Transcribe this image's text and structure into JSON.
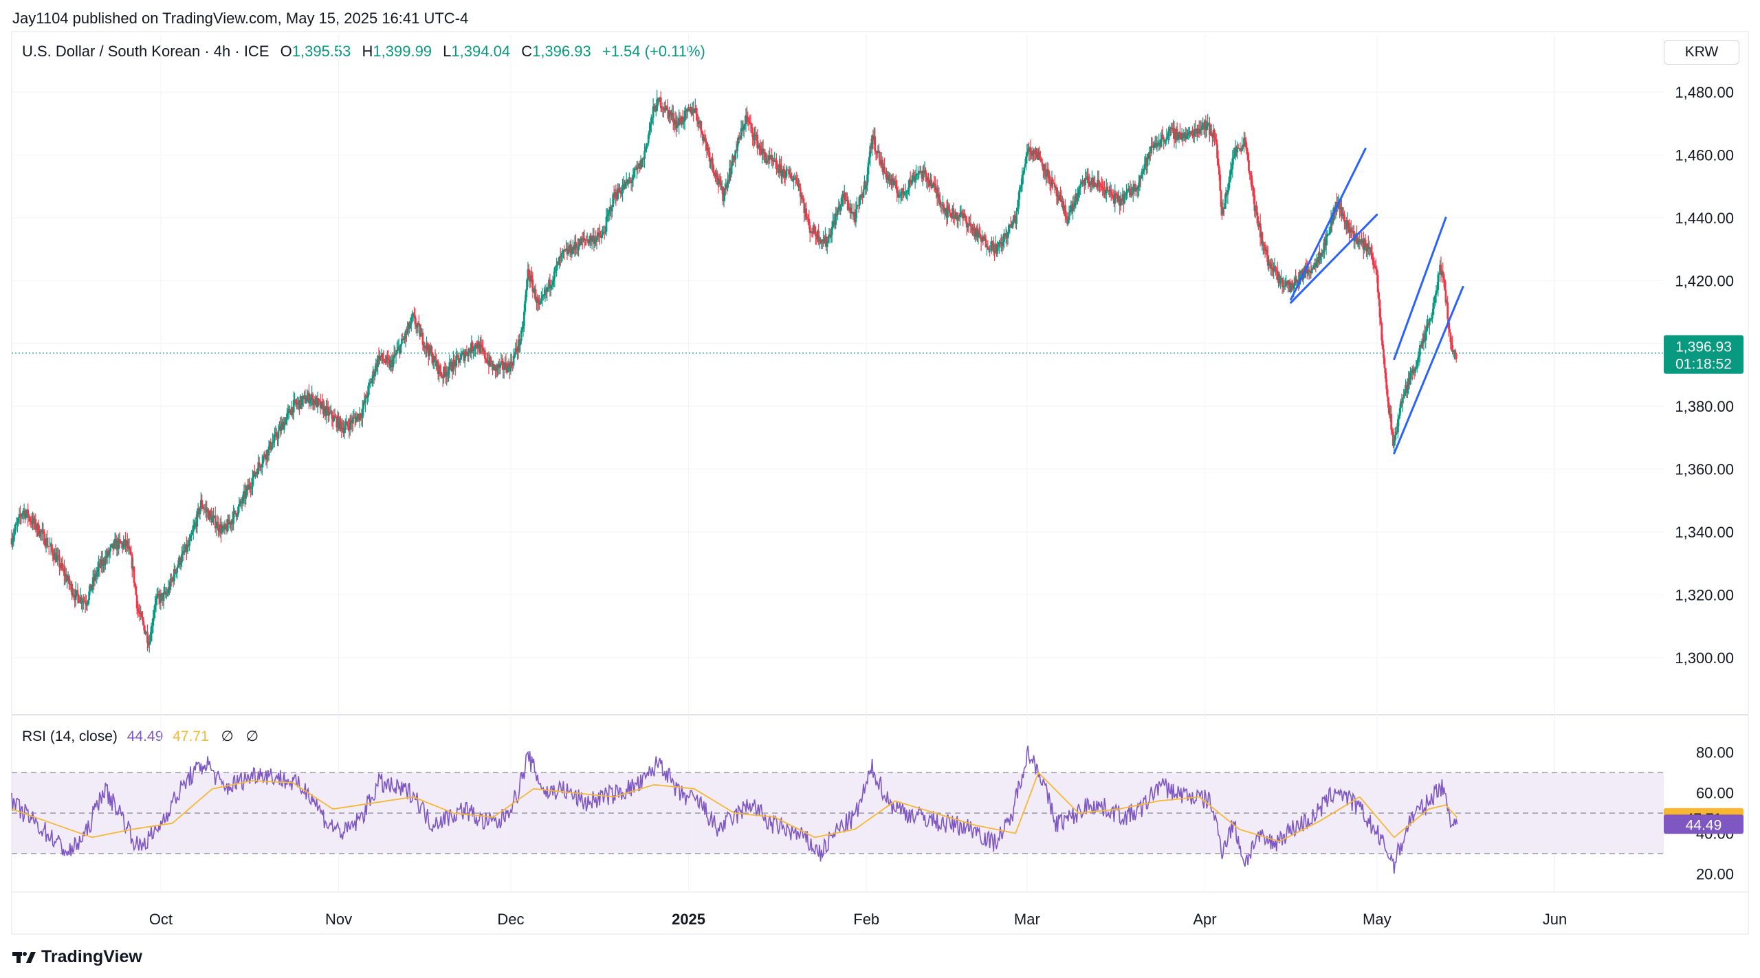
{
  "header": {
    "published": "Jay1104 published on TradingView.com, May 15, 2025 16:41 UTC-4"
  },
  "symbol": {
    "name": "U.S. Dollar / South Korean · 4h · ICE",
    "o_label": "O",
    "o_value": "1,395.53",
    "h_label": "H",
    "h_value": "1,399.99",
    "l_label": "L",
    "l_value": "1,394.04",
    "c_label": "C",
    "c_value": "1,396.93",
    "change": "+1.54 (+0.11%)"
  },
  "currency_button": "KRW",
  "price_marker": {
    "price": "1,396.93",
    "countdown": "01:18:52"
  },
  "rsi": {
    "title": "RSI (14, close)",
    "rsi_value": "44.49",
    "ma_value": "47.71",
    "sym1": "∅",
    "sym2": "∅"
  },
  "brand": {
    "name": "TradingView"
  },
  "colors": {
    "up": "#089981",
    "down": "#f23645",
    "trendline": "#2962ff",
    "rsi": "#7e57c2",
    "rsi_ma": "#f7b733",
    "rsi_band": "#ede7f6"
  },
  "chart_data": [
    {
      "type": "candlestick",
      "title": "U.S. Dollar / South Korean · 4h · ICE",
      "y_ticks": [
        "1,300.00",
        "1,320.00",
        "1,340.00",
        "1,360.00",
        "1,380.00",
        "1,400.00",
        "1,420.00",
        "1,440.00",
        "1,460.00",
        "1,480.00"
      ],
      "ylim": [
        1284,
        1494
      ],
      "x_ticks": [
        "Oct",
        "Nov",
        "Dec",
        "2025",
        "Feb",
        "Mar",
        "Apr",
        "May",
        "Jun"
      ],
      "x_tick_dates": [
        "2024-10-01",
        "2024-11-01",
        "2024-12-01",
        "2025-01-01",
        "2025-02-01",
        "2025-03-01",
        "2025-04-01",
        "2025-05-01",
        "2025-06-01"
      ],
      "xlim": [
        "2024-09-05",
        "2025-06-20"
      ],
      "last_price": 1396.93,
      "close_path": [
        [
          "2024-09-05",
          1338
        ],
        [
          "2024-09-07",
          1347
        ],
        [
          "2024-09-10",
          1340
        ],
        [
          "2024-09-13",
          1331
        ],
        [
          "2024-09-16",
          1320
        ],
        [
          "2024-09-18",
          1318
        ],
        [
          "2024-09-20",
          1328
        ],
        [
          "2024-09-23",
          1336
        ],
        [
          "2024-09-25",
          1336
        ],
        [
          "2024-09-26",
          1330
        ],
        [
          "2024-09-27",
          1315
        ],
        [
          "2024-09-29",
          1305
        ],
        [
          "2024-09-30",
          1318
        ],
        [
          "2024-10-02",
          1320
        ],
        [
          "2024-10-04",
          1330
        ],
        [
          "2024-10-06",
          1336
        ],
        [
          "2024-10-08",
          1349
        ],
        [
          "2024-10-10",
          1344
        ],
        [
          "2024-10-12",
          1340
        ],
        [
          "2024-10-15",
          1349
        ],
        [
          "2024-10-18",
          1361
        ],
        [
          "2024-10-21",
          1370
        ],
        [
          "2024-10-24",
          1380
        ],
        [
          "2024-10-27",
          1383
        ],
        [
          "2024-10-30",
          1378
        ],
        [
          "2024-11-02",
          1373
        ],
        [
          "2024-11-05",
          1378
        ],
        [
          "2024-11-08",
          1396
        ],
        [
          "2024-11-10",
          1393
        ],
        [
          "2024-11-12",
          1400
        ],
        [
          "2024-11-14",
          1408
        ],
        [
          "2024-11-16",
          1400
        ],
        [
          "2024-11-19",
          1390
        ],
        [
          "2024-11-22",
          1395
        ],
        [
          "2024-11-25",
          1400
        ],
        [
          "2024-11-28",
          1392
        ],
        [
          "2024-12-01",
          1393
        ],
        [
          "2024-12-03",
          1403
        ],
        [
          "2024-12-04",
          1423
        ],
        [
          "2024-12-06",
          1411
        ],
        [
          "2024-12-08",
          1420
        ],
        [
          "2024-12-10",
          1428
        ],
        [
          "2024-12-14",
          1433
        ],
        [
          "2024-12-17",
          1434
        ],
        [
          "2024-12-19",
          1447
        ],
        [
          "2024-12-22",
          1452
        ],
        [
          "2024-12-24",
          1458
        ],
        [
          "2024-12-26",
          1475
        ],
        [
          "2024-12-27",
          1477
        ],
        [
          "2024-12-30",
          1470
        ],
        [
          "2025-01-02",
          1475
        ],
        [
          "2025-01-05",
          1458
        ],
        [
          "2025-01-07",
          1447
        ],
        [
          "2025-01-09",
          1460
        ],
        [
          "2025-01-11",
          1472
        ],
        [
          "2025-01-14",
          1460
        ],
        [
          "2025-01-17",
          1455
        ],
        [
          "2025-01-20",
          1452
        ],
        [
          "2025-01-22",
          1437
        ],
        [
          "2025-01-25",
          1432
        ],
        [
          "2025-01-28",
          1447
        ],
        [
          "2025-01-30",
          1440
        ],
        [
          "2025-02-01",
          1452
        ],
        [
          "2025-02-02",
          1466
        ],
        [
          "2025-02-04",
          1455
        ],
        [
          "2025-02-07",
          1447
        ],
        [
          "2025-02-10",
          1455
        ],
        [
          "2025-02-12",
          1452
        ],
        [
          "2025-02-15",
          1442
        ],
        [
          "2025-02-18",
          1440
        ],
        [
          "2025-02-21",
          1433
        ],
        [
          "2025-02-24",
          1430
        ],
        [
          "2025-02-27",
          1440
        ],
        [
          "2025-03-01",
          1462
        ],
        [
          "2025-03-03",
          1460
        ],
        [
          "2025-03-06",
          1448
        ],
        [
          "2025-03-08",
          1440
        ],
        [
          "2025-03-11",
          1452
        ],
        [
          "2025-03-14",
          1450
        ],
        [
          "2025-03-17",
          1445
        ],
        [
          "2025-03-20",
          1450
        ],
        [
          "2025-03-23",
          1463
        ],
        [
          "2025-03-26",
          1467
        ],
        [
          "2025-03-29",
          1466
        ],
        [
          "2025-04-01",
          1470
        ],
        [
          "2025-04-03",
          1465
        ],
        [
          "2025-04-04",
          1440
        ],
        [
          "2025-04-06",
          1460
        ],
        [
          "2025-04-08",
          1465
        ],
        [
          "2025-04-10",
          1440
        ],
        [
          "2025-04-12",
          1426
        ],
        [
          "2025-04-14",
          1420
        ],
        [
          "2025-04-16",
          1418
        ],
        [
          "2025-04-18",
          1422
        ],
        [
          "2025-04-20",
          1425
        ],
        [
          "2025-04-22",
          1432
        ],
        [
          "2025-04-24",
          1445
        ],
        [
          "2025-04-26",
          1437
        ],
        [
          "2025-04-28",
          1432
        ],
        [
          "2025-04-30",
          1430
        ],
        [
          "2025-05-01",
          1420
        ],
        [
          "2025-05-02",
          1398
        ],
        [
          "2025-05-03",
          1380
        ],
        [
          "2025-05-04",
          1367
        ],
        [
          "2025-05-05",
          1380
        ],
        [
          "2025-05-07",
          1390
        ],
        [
          "2025-05-09",
          1400
        ],
        [
          "2025-05-11",
          1412
        ],
        [
          "2025-05-12",
          1425
        ],
        [
          "2025-05-13",
          1415
        ],
        [
          "2025-05-14",
          1398
        ],
        [
          "2025-05-15",
          1396.93
        ]
      ],
      "trendlines": [
        {
          "from": [
            "2025-04-16",
            1414
          ],
          "to": [
            "2025-04-29",
            1462
          ]
        },
        {
          "from": [
            "2025-04-16",
            1413
          ],
          "to": [
            "2025-05-01",
            1441
          ]
        },
        {
          "from": [
            "2025-05-04",
            1395
          ],
          "to": [
            "2025-05-13",
            1440
          ]
        },
        {
          "from": [
            "2025-05-04",
            1365
          ],
          "to": [
            "2025-05-16",
            1418
          ]
        }
      ]
    },
    {
      "type": "line",
      "title": "RSI (14, close)",
      "y_ticks": [
        "20.00",
        "40.00",
        "60.00",
        "80.00"
      ],
      "ylim": [
        13,
        85
      ],
      "bands": [
        30,
        50,
        70
      ],
      "series": [
        {
          "name": "RSI",
          "last": 44.49,
          "values": [
            [
              "2024-09-05",
              55
            ],
            [
              "2024-09-08",
              48
            ],
            [
              "2024-09-12",
              38
            ],
            [
              "2024-09-15",
              30
            ],
            [
              "2024-09-18",
              40
            ],
            [
              "2024-09-21",
              62
            ],
            [
              "2024-09-24",
              50
            ],
            [
              "2024-09-27",
              33
            ],
            [
              "2024-09-30",
              40
            ],
            [
              "2024-10-03",
              55
            ],
            [
              "2024-10-06",
              68
            ],
            [
              "2024-10-09",
              75
            ],
            [
              "2024-10-12",
              62
            ],
            [
              "2024-10-15",
              66
            ],
            [
              "2024-10-18",
              70
            ],
            [
              "2024-10-21",
              68
            ],
            [
              "2024-10-24",
              65
            ],
            [
              "2024-10-27",
              60
            ],
            [
              "2024-10-30",
              45
            ],
            [
              "2024-11-02",
              40
            ],
            [
              "2024-11-05",
              48
            ],
            [
              "2024-11-08",
              65
            ],
            [
              "2024-11-11",
              62
            ],
            [
              "2024-11-14",
              60
            ],
            [
              "2024-11-17",
              45
            ],
            [
              "2024-11-20",
              48
            ],
            [
              "2024-11-23",
              52
            ],
            [
              "2024-11-26",
              46
            ],
            [
              "2024-11-29",
              45
            ],
            [
              "2024-12-02",
              58
            ],
            [
              "2024-12-04",
              78
            ],
            [
              "2024-12-07",
              60
            ],
            [
              "2024-12-10",
              62
            ],
            [
              "2024-12-14",
              55
            ],
            [
              "2024-12-17",
              58
            ],
            [
              "2024-12-20",
              60
            ],
            [
              "2024-12-24",
              65
            ],
            [
              "2024-12-27",
              76
            ],
            [
              "2024-12-30",
              60
            ],
            [
              "2025-01-03",
              55
            ],
            [
              "2025-01-06",
              42
            ],
            [
              "2025-01-09",
              48
            ],
            [
              "2025-01-12",
              55
            ],
            [
              "2025-01-15",
              45
            ],
            [
              "2025-01-18",
              42
            ],
            [
              "2025-01-21",
              38
            ],
            [
              "2025-01-24",
              30
            ],
            [
              "2025-01-27",
              42
            ],
            [
              "2025-01-30",
              48
            ],
            [
              "2025-02-02",
              72
            ],
            [
              "2025-02-05",
              55
            ],
            [
              "2025-02-08",
              50
            ],
            [
              "2025-02-11",
              48
            ],
            [
              "2025-02-14",
              45
            ],
            [
              "2025-02-17",
              44
            ],
            [
              "2025-02-20",
              42
            ],
            [
              "2025-02-23",
              35
            ],
            [
              "2025-02-26",
              45
            ],
            [
              "2025-03-01",
              80
            ],
            [
              "2025-03-03",
              72
            ],
            [
              "2025-03-06",
              45
            ],
            [
              "2025-03-09",
              48
            ],
            [
              "2025-03-12",
              55
            ],
            [
              "2025-03-15",
              52
            ],
            [
              "2025-03-18",
              48
            ],
            [
              "2025-03-21",
              52
            ],
            [
              "2025-03-24",
              64
            ],
            [
              "2025-03-27",
              60
            ],
            [
              "2025-03-30",
              58
            ],
            [
              "2025-04-02",
              56
            ],
            [
              "2025-04-04",
              32
            ],
            [
              "2025-04-06",
              45
            ],
            [
              "2025-04-08",
              25
            ],
            [
              "2025-04-10",
              38
            ],
            [
              "2025-04-13",
              35
            ],
            [
              "2025-04-16",
              42
            ],
            [
              "2025-04-20",
              48
            ],
            [
              "2025-04-24",
              62
            ],
            [
              "2025-04-28",
              52
            ],
            [
              "2025-05-01",
              40
            ],
            [
              "2025-05-04",
              25
            ],
            [
              "2025-05-07",
              48
            ],
            [
              "2025-05-10",
              55
            ],
            [
              "2025-05-12",
              64
            ],
            [
              "2025-05-13",
              58
            ],
            [
              "2025-05-14",
              46
            ],
            [
              "2025-05-15",
              44.49
            ]
          ]
        },
        {
          "name": "RSI-based MA",
          "last": 47.71,
          "values": [
            [
              "2024-09-05",
              52
            ],
            [
              "2024-09-12",
              45
            ],
            [
              "2024-09-19",
              38
            ],
            [
              "2024-09-26",
              42
            ],
            [
              "2024-10-03",
              45
            ],
            [
              "2024-10-10",
              62
            ],
            [
              "2024-10-17",
              66
            ],
            [
              "2024-10-24",
              65
            ],
            [
              "2024-10-31",
              52
            ],
            [
              "2024-11-07",
              55
            ],
            [
              "2024-11-14",
              58
            ],
            [
              "2024-11-21",
              50
            ],
            [
              "2024-11-28",
              48
            ],
            [
              "2024-12-05",
              62
            ],
            [
              "2024-12-12",
              60
            ],
            [
              "2024-12-19",
              58
            ],
            [
              "2024-12-26",
              64
            ],
            [
              "2025-01-02",
              62
            ],
            [
              "2025-01-09",
              50
            ],
            [
              "2025-01-16",
              48
            ],
            [
              "2025-01-23",
              38
            ],
            [
              "2025-01-30",
              42
            ],
            [
              "2025-02-06",
              56
            ],
            [
              "2025-02-13",
              50
            ],
            [
              "2025-02-20",
              44
            ],
            [
              "2025-02-27",
              40
            ],
            [
              "2025-03-03",
              70
            ],
            [
              "2025-03-10",
              50
            ],
            [
              "2025-03-17",
              52
            ],
            [
              "2025-03-24",
              56
            ],
            [
              "2025-03-31",
              58
            ],
            [
              "2025-04-07",
              42
            ],
            [
              "2025-04-14",
              36
            ],
            [
              "2025-04-21",
              46
            ],
            [
              "2025-04-28",
              58
            ],
            [
              "2025-05-04",
              38
            ],
            [
              "2025-05-10",
              52
            ],
            [
              "2025-05-13",
              54
            ],
            [
              "2025-05-15",
              47.71
            ]
          ]
        }
      ]
    }
  ]
}
